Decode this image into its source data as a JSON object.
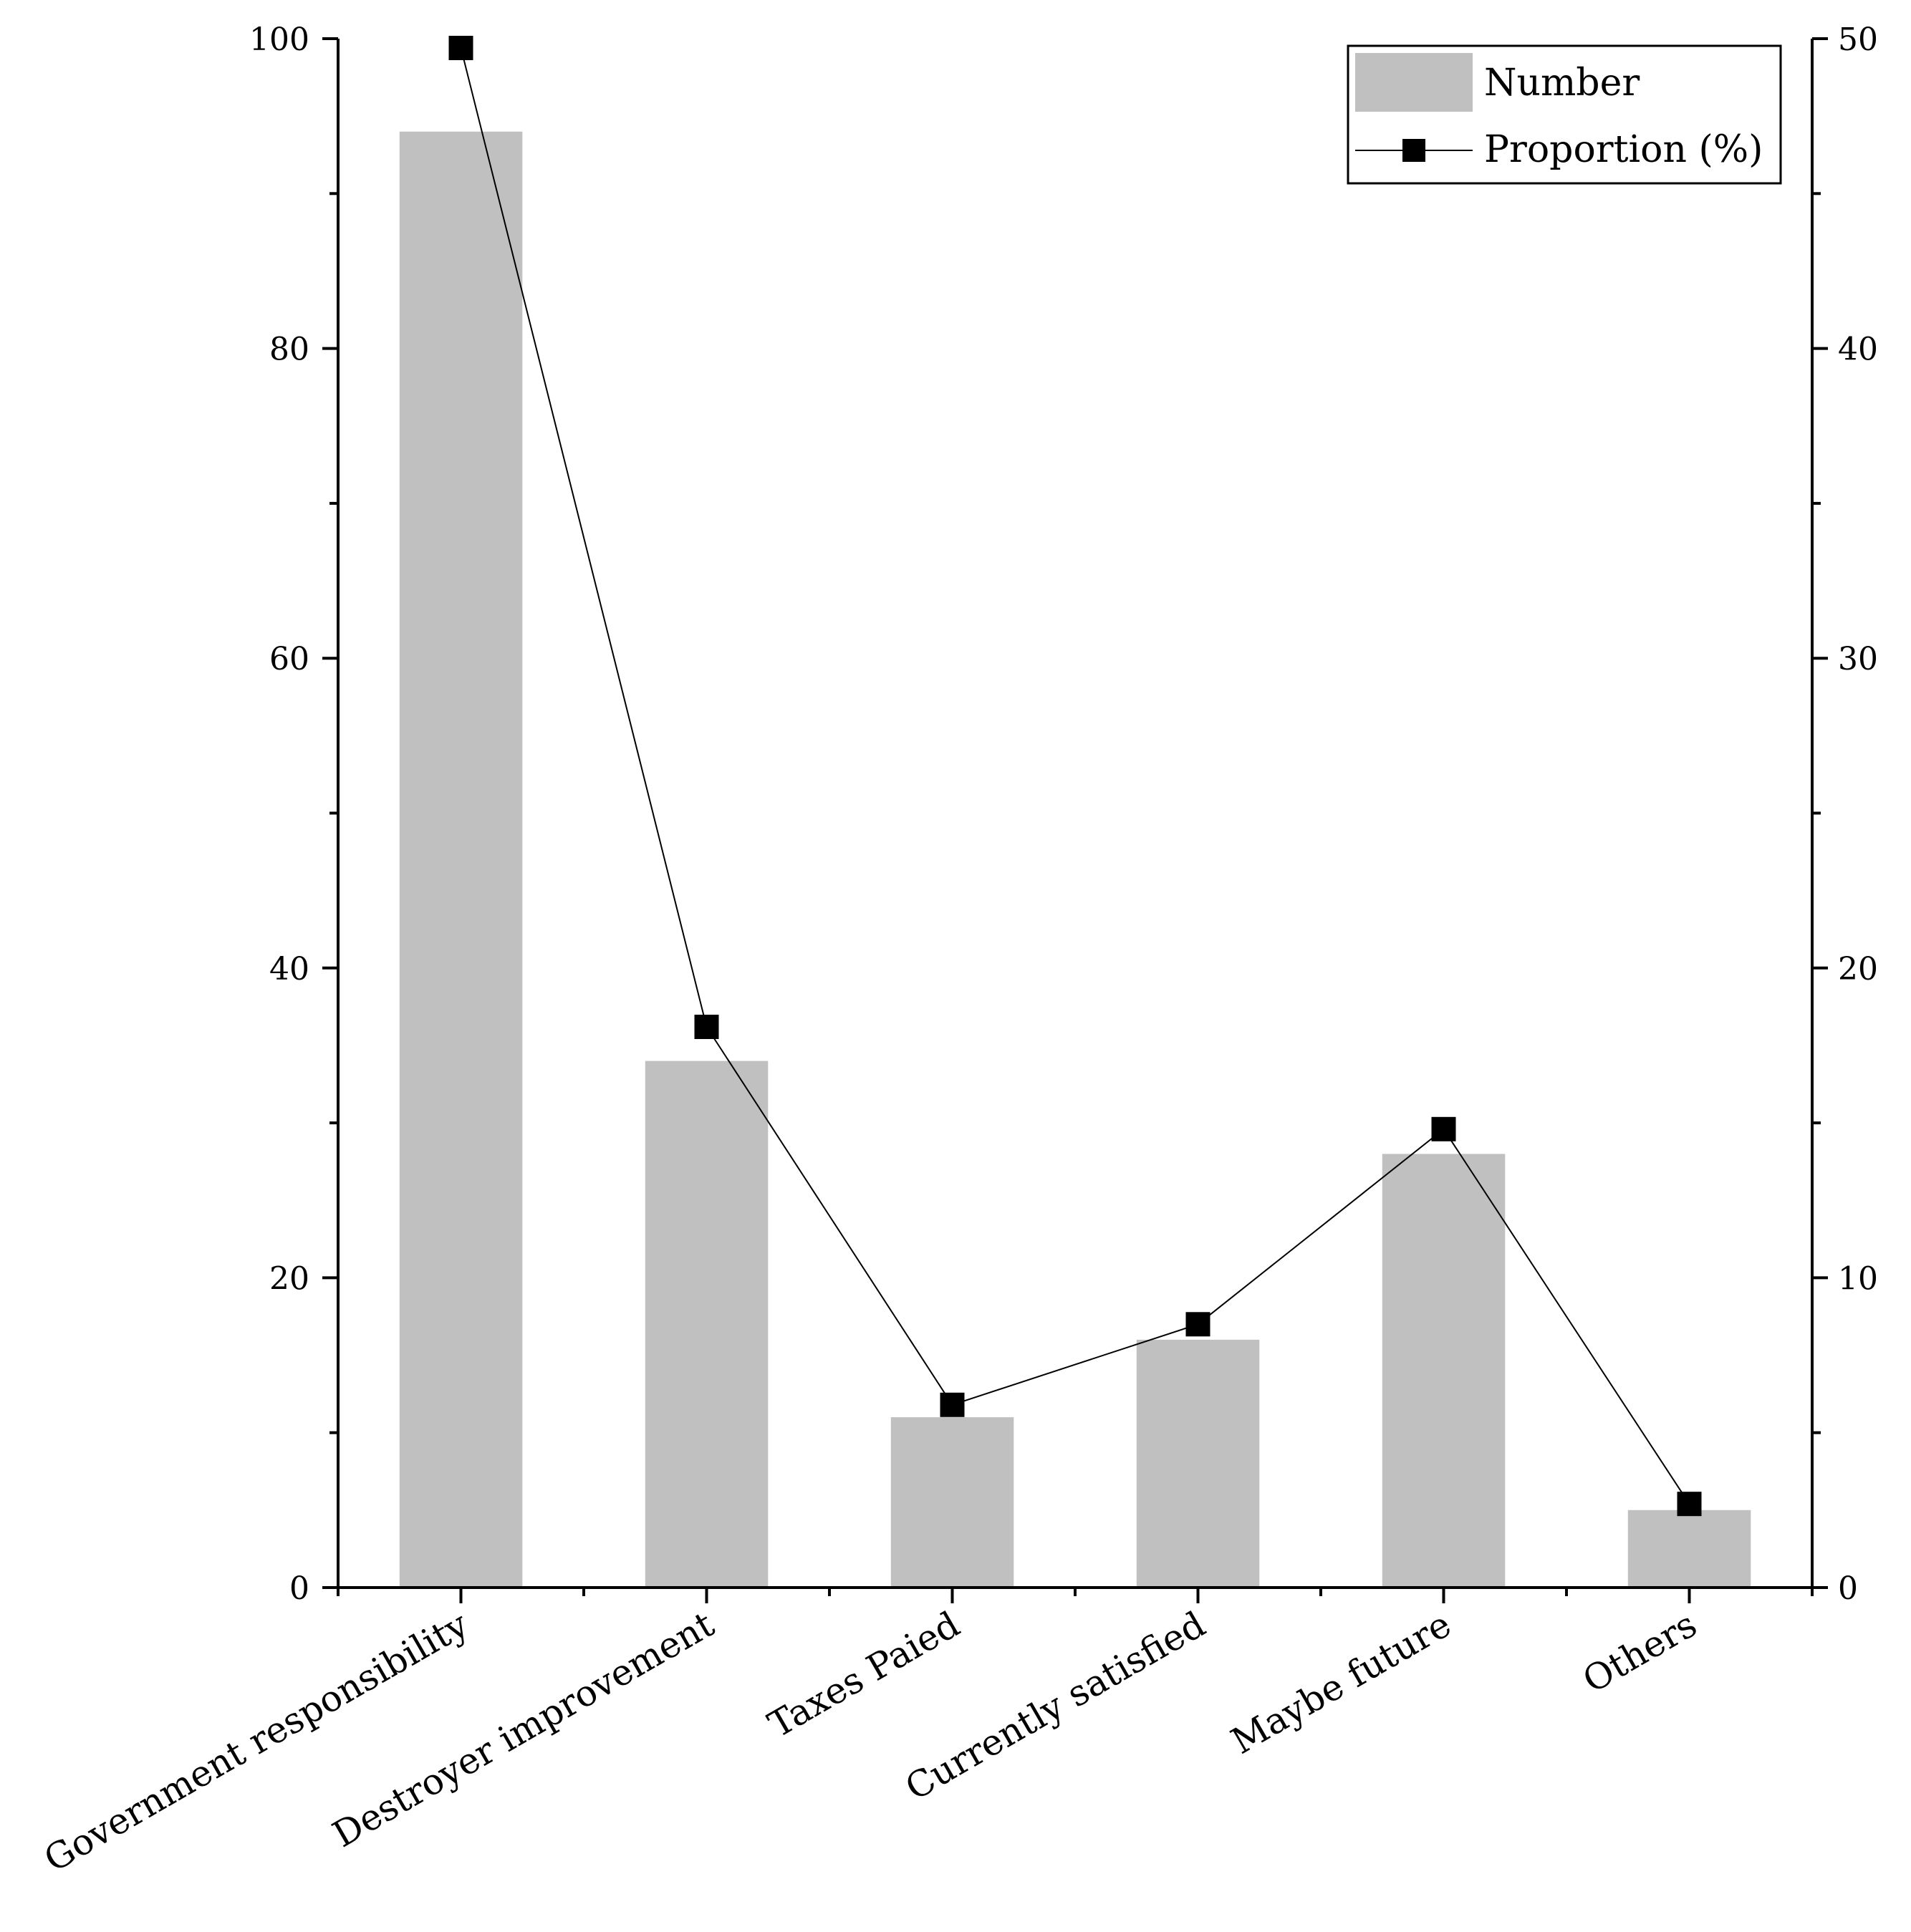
{
  "chart_data": {
    "type": "bar",
    "categories": [
      "Government responsibility",
      "Destroyer improvement",
      "Taxes Paied",
      "Currently satisfied",
      "Maybe future",
      "Others"
    ],
    "series": [
      {
        "name": "Number",
        "type": "bar",
        "axis": "left",
        "values": [
          94,
          34,
          11,
          16,
          28,
          5
        ]
      },
      {
        "name": "Proportion (%)",
        "type": "line",
        "axis": "right",
        "values": [
          49.7,
          18.1,
          5.9,
          8.5,
          14.8,
          2.7
        ]
      }
    ],
    "y_left": {
      "min": 0,
      "max": 100,
      "ticks": [
        0,
        20,
        40,
        60,
        80,
        100
      ]
    },
    "y_right": {
      "min": 0,
      "max": 50,
      "ticks": [
        0,
        10,
        20,
        30,
        40,
        50
      ]
    },
    "legend_position": "top-right",
    "colors": {
      "bar": "#c0c0c0",
      "line": "#000000"
    }
  }
}
